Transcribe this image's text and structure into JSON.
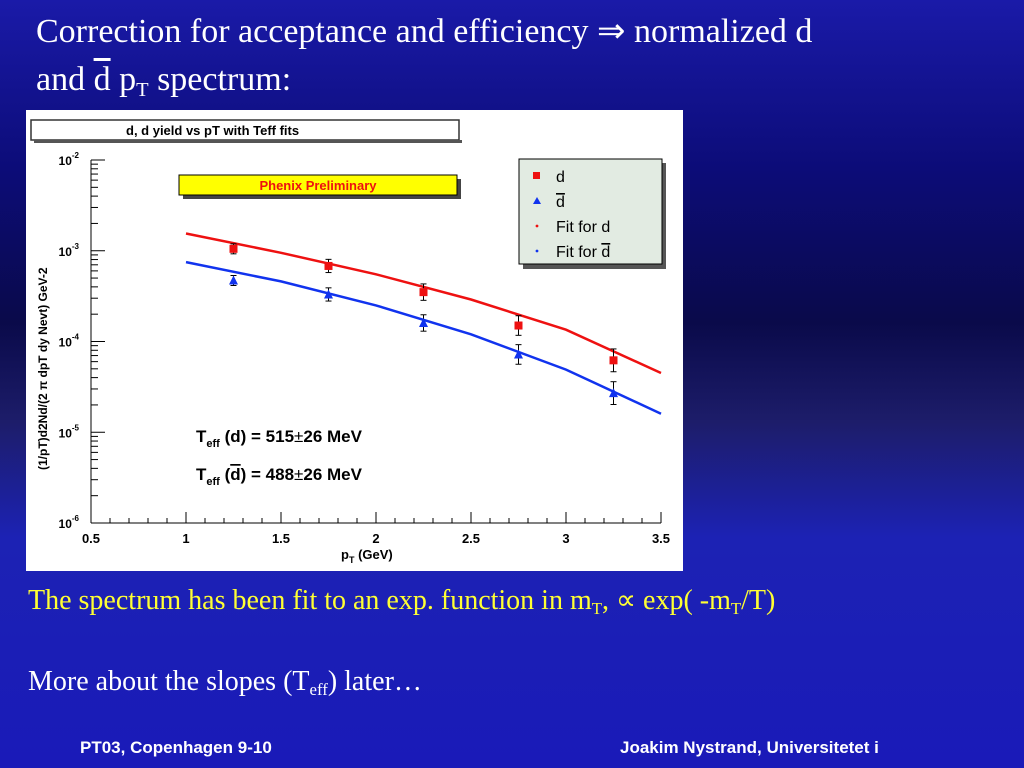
{
  "slide": {
    "title_line1_pre": "Correction for acceptance and efficiency",
    "title_arrow": "⇒",
    "title_line1_post": "normalized d",
    "title_line2_a": "and",
    "title_line2_dbar": "d",
    "title_line2_p": "p",
    "title_line2_sub": "T",
    "title_line2_b": "spectrum:",
    "fit_text_pre": "The spectrum has been fit to an exp. function in m",
    "fit_text_sub1": "T",
    "fit_text_mid": ",",
    "fit_text_prop": "∝",
    "fit_text_exp": "exp( -m",
    "fit_text_sub2": "T",
    "fit_text_end": "/T)",
    "slopes_pre": "More about the slopes (T",
    "slopes_sub": "eff",
    "slopes_post": ") later…",
    "footer_left": "PT03, Copenhagen 9-10",
    "footer_right": "Joakim Nystrand, Universitetet i"
  },
  "chart_data": {
    "type": "scatter",
    "title": "d, d yield vs pT with Teff fits",
    "banner": "Phenix Preliminary",
    "xlabel": "pT (GeV)",
    "ylabel": "(1/pT)d2Nd/(2 π dpT dy Nevt) GeV-2",
    "xlim": [
      0.5,
      3.5
    ],
    "ylim": [
      1e-06,
      0.01
    ],
    "yscale": "log",
    "x_ticks": [
      "0.5",
      "1",
      "1.5",
      "2",
      "2.5",
      "3",
      "3.5"
    ],
    "y_ticks": [
      {
        "base": "10",
        "exp": "-2"
      },
      {
        "base": "10",
        "exp": "-3"
      },
      {
        "base": "10",
        "exp": "-4"
      },
      {
        "base": "10",
        "exp": "-5"
      },
      {
        "base": "10",
        "exp": "-6"
      }
    ],
    "series": [
      {
        "name": "d",
        "color": "#ee1111",
        "marker": "square",
        "x": [
          1.25,
          1.75,
          2.25,
          2.75,
          3.25
        ],
        "y": [
          0.00105,
          0.00068,
          0.00035,
          0.00015,
          6.2e-05
        ]
      },
      {
        "name": "d",
        "overline": true,
        "color": "#1133ee",
        "marker": "triangle",
        "x": [
          1.25,
          1.75,
          2.25,
          2.75,
          3.25
        ],
        "y": [
          0.00047,
          0.00033,
          0.00016,
          7.2e-05,
          2.7e-05
        ]
      }
    ],
    "fits": [
      {
        "name": "Fit for d",
        "color": "#ee1111",
        "x": [
          1.0,
          1.5,
          2.0,
          2.5,
          3.0,
          3.5
        ],
        "y": [
          0.00155,
          0.00095,
          0.00055,
          0.00029,
          0.000135,
          4.5e-05
        ]
      },
      {
        "name": "Fit for d",
        "overline": true,
        "color": "#1133ee",
        "x": [
          1.0,
          1.5,
          2.0,
          2.5,
          3.0,
          3.5
        ],
        "y": [
          0.00075,
          0.00046,
          0.00025,
          0.00012,
          4.9e-05,
          1.6e-05
        ]
      }
    ],
    "annotations": [
      {
        "pre": "T",
        "sub": "eff",
        "mid": " (d) = 515",
        "pm": "±",
        "post": "26 MeV"
      },
      {
        "pre": "T",
        "sub": "eff",
        "mid": " (d) = 488",
        "pm": "±",
        "post": "26 MeV",
        "overline": true
      }
    ]
  }
}
